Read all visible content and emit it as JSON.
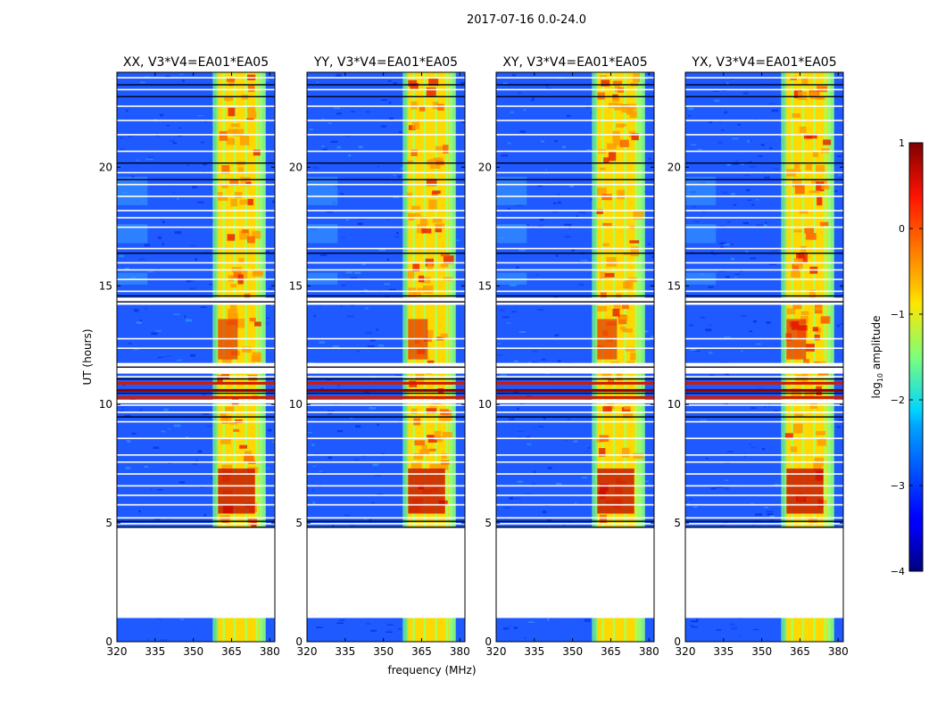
{
  "figure": {
    "suptitle": "2017-07-16 0.0-24.0",
    "xlabel": "frequency (MHz)",
    "ylabel": "UT (hours)",
    "colorbar_label": "log",
    "colorbar_label_sub": "10",
    "colorbar_label_rest": " amplitude"
  },
  "chart_data": [
    {
      "type": "heatmap",
      "title": "XX, V3*V4=EA01*EA05",
      "x_range": [
        320,
        382
      ],
      "y_range": [
        0,
        24
      ],
      "x_ticks": [
        320,
        335,
        350,
        365,
        380
      ],
      "x_tick_labels": [
        "320",
        "335",
        "350",
        "365",
        "380"
      ],
      "y_ticks": [
        0,
        5,
        10,
        15,
        20
      ],
      "y_tick_labels": [
        "0",
        "5",
        "10",
        "15",
        "20"
      ],
      "xlabel": "",
      "ylabel": "UT (hours)",
      "data_gap_hours": [
        1.0,
        4.8
      ],
      "band_mhz": [
        359,
        377
      ],
      "z_scale": "log10 amplitude"
    },
    {
      "type": "heatmap",
      "title": "YY, V3*V4=EA01*EA05",
      "x_range": [
        320,
        382
      ],
      "y_range": [
        0,
        24
      ],
      "x_ticks": [
        320,
        335,
        350,
        365,
        380
      ],
      "x_tick_labels": [
        "320",
        "335",
        "350",
        "365",
        "380"
      ],
      "y_ticks": [
        0,
        5,
        10,
        15,
        20
      ],
      "y_tick_labels": [
        "0",
        "5",
        "10",
        "15",
        "20"
      ],
      "xlabel": "frequency (MHz)",
      "ylabel": "",
      "data_gap_hours": [
        1.0,
        4.8
      ],
      "band_mhz": [
        359,
        377
      ],
      "z_scale": "log10 amplitude"
    },
    {
      "type": "heatmap",
      "title": "XY, V3*V4=EA01*EA05",
      "x_range": [
        320,
        382
      ],
      "y_range": [
        0,
        24
      ],
      "x_ticks": [
        320,
        335,
        350,
        365,
        380
      ],
      "x_tick_labels": [
        "320",
        "335",
        "350",
        "365",
        "380"
      ],
      "y_ticks": [
        0,
        5,
        10,
        15,
        20
      ],
      "y_tick_labels": [
        "0",
        "5",
        "10",
        "15",
        "20"
      ],
      "xlabel": "",
      "ylabel": "",
      "data_gap_hours": [
        1.0,
        4.8
      ],
      "band_mhz": [
        359,
        377
      ],
      "z_scale": "log10 amplitude"
    },
    {
      "type": "heatmap",
      "title": "YX, V3*V4=EA01*EA05",
      "x_range": [
        320,
        382
      ],
      "y_range": [
        0,
        24
      ],
      "x_ticks": [
        320,
        335,
        350,
        365,
        380
      ],
      "x_tick_labels": [
        "320",
        "335",
        "350",
        "365",
        "380"
      ],
      "y_ticks": [
        0,
        5,
        10,
        15,
        20
      ],
      "y_tick_labels": [
        "0",
        "5",
        "10",
        "15",
        "20"
      ],
      "xlabel": "",
      "ylabel": "",
      "data_gap_hours": [
        1.0,
        4.8
      ],
      "band_mhz": [
        359,
        377
      ],
      "z_scale": "log10 amplitude"
    }
  ],
  "colorbar": {
    "range": [
      -4,
      1
    ],
    "ticks": [
      1,
      0,
      -1,
      -2,
      -3,
      -4
    ],
    "tick_labels": [
      "1",
      "0",
      "−1",
      "−2",
      "−3",
      "−4"
    ]
  }
}
